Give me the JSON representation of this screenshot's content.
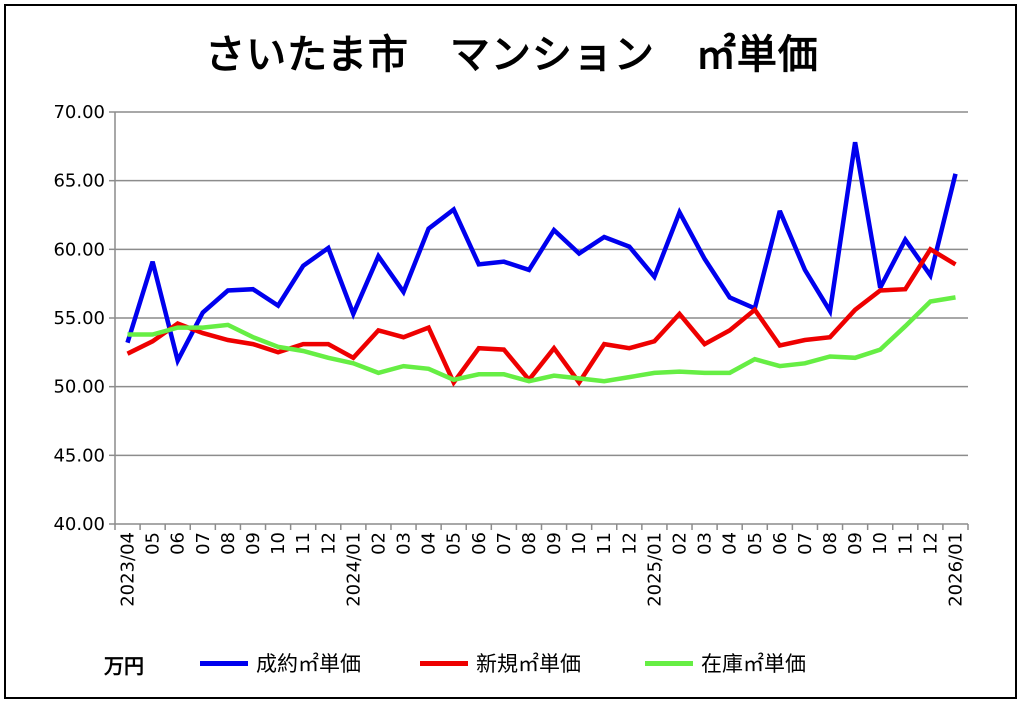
{
  "chart_data": {
    "type": "line",
    "title": "さいたま市　マンション　㎡単価",
    "ylabel": "万円",
    "ylim": [
      40,
      70
    ],
    "yticks": [
      "40.00",
      "45.00",
      "50.00",
      "55.00",
      "60.00",
      "65.00",
      "70.00"
    ],
    "grid": true,
    "legend_position": "bottom",
    "x": [
      "2023/04",
      "05",
      "06",
      "07",
      "08",
      "09",
      "10",
      "11",
      "12",
      "2024/01",
      "02",
      "03",
      "04",
      "05",
      "06",
      "07",
      "08",
      "09",
      "10",
      "11",
      "12",
      "2025/01",
      "02",
      "03",
      "04",
      "05",
      "06",
      "07",
      "08",
      "09",
      "10",
      "11",
      "12",
      "2026/01"
    ],
    "series": [
      {
        "name": "成約㎡単価",
        "color": "#0000ee",
        "values": [
          53.2,
          59.1,
          51.9,
          55.4,
          57.0,
          57.1,
          55.9,
          58.8,
          60.1,
          55.3,
          59.5,
          56.9,
          61.5,
          62.9,
          58.9,
          59.1,
          58.5,
          61.4,
          59.7,
          60.9,
          60.2,
          58.0,
          62.7,
          59.3,
          56.5,
          55.7,
          62.8,
          58.5,
          55.5,
          67.8,
          57.2,
          60.7,
          58.1,
          65.5
        ]
      },
      {
        "name": "新規㎡単価",
        "color": "#ee0000",
        "values": [
          52.4,
          53.3,
          54.6,
          53.9,
          53.4,
          53.1,
          52.5,
          53.1,
          53.1,
          52.1,
          54.1,
          53.6,
          54.3,
          50.3,
          52.8,
          52.7,
          50.5,
          52.8,
          50.3,
          53.1,
          52.8,
          53.3,
          55.3,
          53.1,
          54.1,
          55.6,
          53.0,
          53.4,
          53.6,
          55.6,
          57.0,
          57.1,
          60.0,
          58.9
        ]
      },
      {
        "name": "在庫㎡単価",
        "color": "#66ee44",
        "values": [
          53.8,
          53.8,
          54.3,
          54.3,
          54.5,
          53.6,
          52.9,
          52.6,
          52.1,
          51.7,
          51.0,
          51.5,
          51.3,
          50.5,
          50.9,
          50.9,
          50.4,
          50.8,
          50.6,
          50.4,
          50.7,
          51.0,
          51.1,
          51.0,
          51.0,
          52.0,
          51.5,
          51.7,
          52.2,
          52.1,
          52.7,
          54.4,
          56.2,
          56.5
        ]
      }
    ]
  }
}
